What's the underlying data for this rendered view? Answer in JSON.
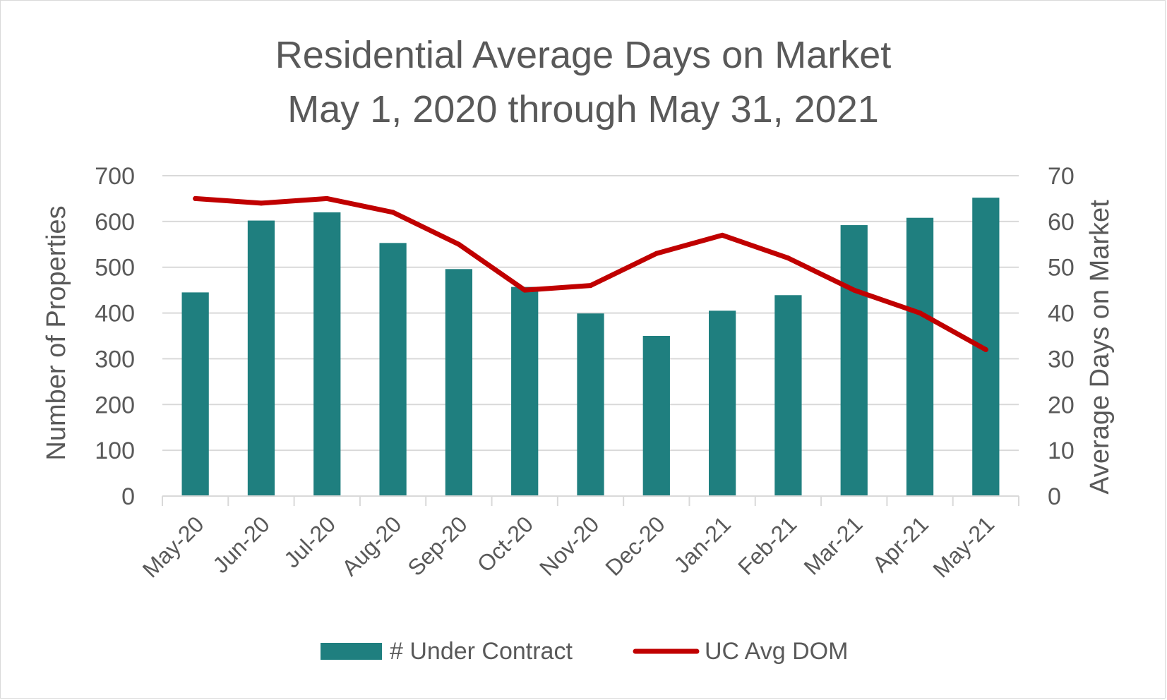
{
  "chart_data": {
    "type": "bar",
    "title": "Residential Average Days on Market",
    "subtitle": "May 1, 2020 through May 31, 2021",
    "ylabel": "Number of Properties",
    "y2label": "Average Days on Market",
    "categories": [
      "May-20",
      "Jun-20",
      "Jul-20",
      "Aug-20",
      "Sep-20",
      "Oct-20",
      "Nov-20",
      "Dec-20",
      "Jan-21",
      "Feb-21",
      "Mar-21",
      "Apr-21",
      "May-21"
    ],
    "ylim": [
      0,
      700
    ],
    "yticks": [
      "0",
      "100",
      "200",
      "300",
      "400",
      "500",
      "600",
      "700"
    ],
    "y2lim": [
      0,
      70
    ],
    "y2ticks": [
      "0",
      "10",
      "20",
      "30",
      "40",
      "50",
      "60",
      "70"
    ],
    "grid": true,
    "legend_position": "bottom",
    "series": [
      {
        "name": "# Under Contract",
        "type": "bar",
        "axis": "left",
        "color": "#1f7f7f",
        "values": [
          445,
          602,
          620,
          553,
          496,
          457,
          399,
          350,
          405,
          439,
          592,
          608,
          652
        ]
      },
      {
        "name": "UC Avg DOM",
        "type": "line",
        "axis": "right",
        "color": "#c00000",
        "values": [
          65,
          64,
          65,
          62,
          55,
          45,
          46,
          53,
          57,
          52,
          45,
          40,
          32
        ]
      }
    ]
  }
}
